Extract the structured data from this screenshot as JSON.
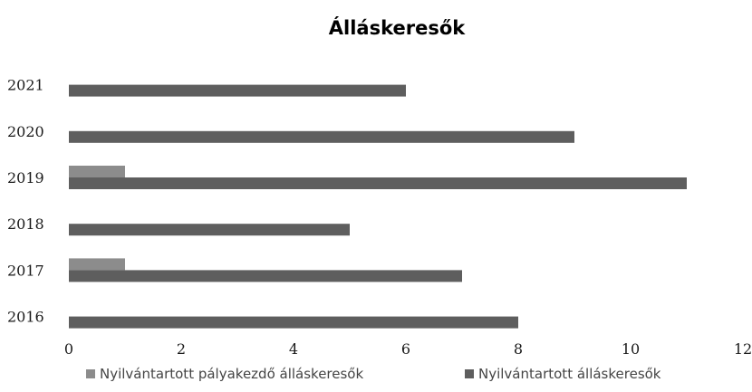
{
  "chart_data": {
    "type": "bar",
    "orientation": "horizontal",
    "title": "Álláskeresők",
    "categories": [
      "2016",
      "2017",
      "2018",
      "2019",
      "2020",
      "2021"
    ],
    "series": [
      {
        "name": "Nyilvántartott pályakezdő álláskeresők",
        "values": [
          0,
          1,
          0,
          1,
          0,
          0
        ],
        "color": "#8c8c8c"
      },
      {
        "name": "Nyilvántartott álláskeresők",
        "values": [
          8,
          7,
          5,
          11,
          9,
          6
        ],
        "color": "#5e5e5e"
      }
    ],
    "xlim": [
      0,
      12
    ],
    "xticks": [
      "0",
      "2",
      "4",
      "6",
      "8",
      "10",
      "12"
    ],
    "grid": false,
    "legend_position": "bottom"
  }
}
